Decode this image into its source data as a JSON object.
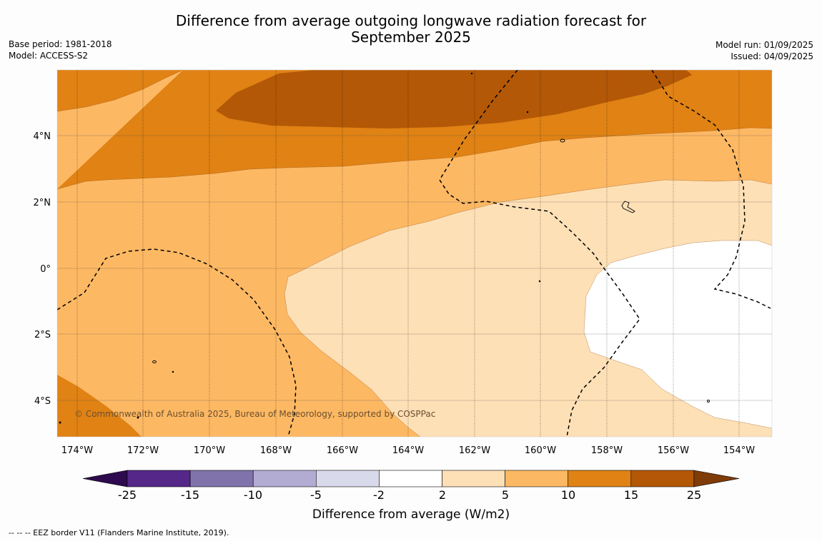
{
  "header": {
    "title_line1": "Difference from average outgoing longwave radiation forecast for",
    "title_line2": "September 2025",
    "base_period": "Base period: 1981-2018",
    "model": "Model: ACCESS-S2",
    "model_run": "Model run: 01/09/2025",
    "issued": "Issued: 04/09/2025"
  },
  "map": {
    "copyright": "© Commonwealth of Australia 2025, Bureau of Meteorology, supported by COSPPac",
    "lon_labels": [
      "174°W",
      "172°W",
      "170°W",
      "168°W",
      "166°W",
      "164°W",
      "162°W",
      "160°W",
      "158°W",
      "156°W",
      "154°W"
    ],
    "lat_labels": [
      "4°N",
      "2°N",
      "0°",
      "2°S",
      "4°S"
    ]
  },
  "colorbar": {
    "label": "Difference from average (W/m2)",
    "ticks": [
      "-25",
      "-15",
      "-10",
      "-5",
      "-2",
      "2",
      "5",
      "10",
      "15",
      "25"
    ],
    "colors": [
      "#2e0a4e",
      "#542788",
      "#8073ac",
      "#b2abd2",
      "#d8daeb",
      "#ffffff",
      "#fee0b6",
      "#fdb863",
      "#e08214",
      "#b35806",
      "#7f3b08"
    ]
  },
  "footer": {
    "legend_text": "--  --  -- EEZ border V11 (Flanders Marine Institute, 2019)."
  }
}
